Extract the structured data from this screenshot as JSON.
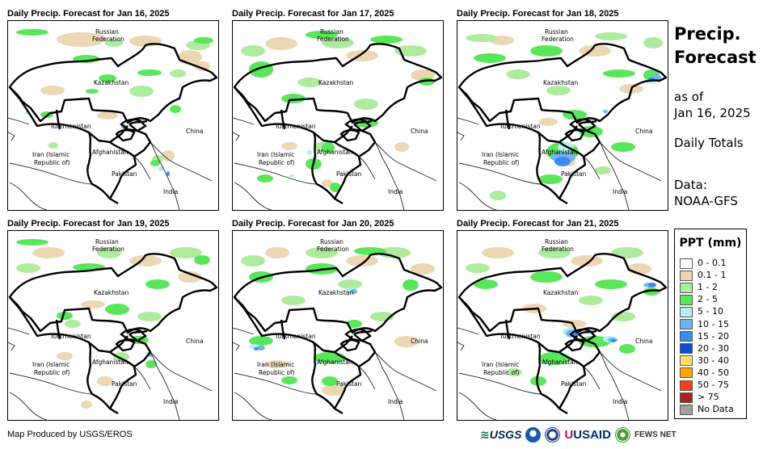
{
  "panels": [
    {
      "title": "Daily Precip. Forecast for Jan 16, 2025"
    },
    {
      "title": "Daily Precip. Forecast for Jan 17, 2025"
    },
    {
      "title": "Daily Precip. Forecast for Jan 18, 2025"
    },
    {
      "title": "Daily Precip. Forecast for Jan 19, 2025"
    },
    {
      "title": "Daily Precip. Forecast for Jan 20, 2025"
    },
    {
      "title": "Daily Precip. Forecast for Jan 21, 2025"
    }
  ],
  "map_labels": {
    "russia_line1": "Russian",
    "russia_line2": "Federation",
    "kazakhstan": "Kazakhstan",
    "turkmenistan": "Turkmenistan",
    "china": "China",
    "iran_line1": "Iran  (Islamic",
    "iran_line2": "Republic of)",
    "afghanistan": "Afghanistan",
    "pakistan": "Pakistan",
    "india": "India"
  },
  "side": {
    "title_line1": "Precip.",
    "title_line2": "Forecast",
    "asof_line1": "as of",
    "asof_line2": "Jan 16, 2025",
    "totals": "Daily Totals",
    "data_line1": "Data:",
    "data_line2": "NOAA-GFS"
  },
  "legend": {
    "title": "PPT (mm)",
    "items": [
      {
        "label": "0 - 0.1",
        "color": "#FFFFFF"
      },
      {
        "label": "0.1 - 1",
        "color": "#EBD7B4"
      },
      {
        "label": "1 - 2",
        "color": "#AEEB9F"
      },
      {
        "label": "2 - 5",
        "color": "#5AE65A"
      },
      {
        "label": "5 - 10",
        "color": "#B4F0F0"
      },
      {
        "label": "10 - 15",
        "color": "#73B4F0"
      },
      {
        "label": "15 - 20",
        "color": "#3C8CF0"
      },
      {
        "label": "20 - 30",
        "color": "#0A50D2"
      },
      {
        "label": "30 - 40",
        "color": "#FFE164"
      },
      {
        "label": "40 - 50",
        "color": "#FFA500"
      },
      {
        "label": "50 - 75",
        "color": "#FF3C14"
      },
      {
        "label": "> 75",
        "color": "#AA2323"
      },
      {
        "label": "No Data",
        "color": "#A0A0A0"
      }
    ]
  },
  "footer": {
    "credit": "Map Produced by USGS/EROS"
  },
  "logos": {
    "usgs": "USGS",
    "usaid": "USAID",
    "fews": "FEWS NET"
  }
}
